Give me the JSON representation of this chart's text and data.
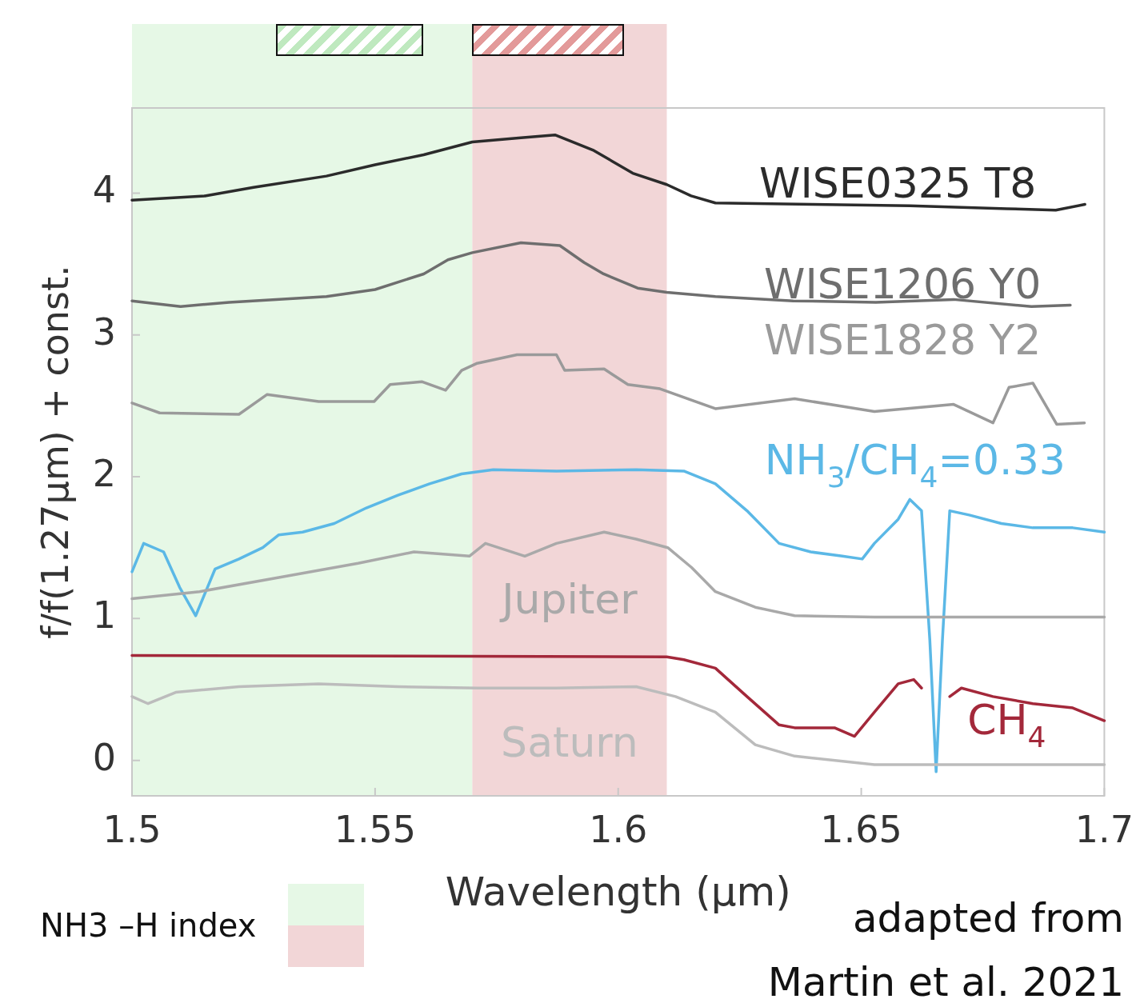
{
  "chart_data": {
    "type": "line",
    "xlabel": "Wavelength (μm)",
    "ylabel": "f/f(1.27μm) + const.",
    "marker": "none",
    "grid": false,
    "xlim": [
      1.5,
      1.7
    ],
    "ylim": [
      -0.25,
      4.6
    ],
    "xticks": [
      1.5,
      1.55,
      1.6,
      1.65,
      1.7
    ],
    "yticks": [
      0,
      1,
      2,
      3,
      4
    ],
    "bands": [
      {
        "axis": "x",
        "from": 1.5,
        "to": 1.57,
        "color": "#e6f8e6"
      },
      {
        "axis": "x",
        "from": 1.57,
        "to": 1.61,
        "color": "#f2d6d7"
      }
    ],
    "annotations": [
      "NH3 –H index",
      "adapted from\nMartin et al. 2021"
    ],
    "series": [
      {
        "name": "WISE0325 T8",
        "color": "#2b2b2b",
        "x": [
          1.5,
          1.515,
          1.525,
          1.54,
          1.55,
          1.56,
          1.57,
          1.58,
          1.587,
          1.595,
          1.603,
          1.61,
          1.615,
          1.62,
          1.64,
          1.66,
          1.68,
          1.69,
          1.696
        ],
        "values": [
          3.95,
          3.98,
          4.04,
          4.12,
          4.2,
          4.27,
          4.36,
          4.39,
          4.41,
          4.3,
          4.14,
          4.06,
          3.98,
          3.93,
          3.92,
          3.91,
          3.89,
          3.88,
          3.92
        ]
      },
      {
        "name": "WISE1206 Y0",
        "color": "#6e6e6e",
        "x": [
          1.5,
          1.51,
          1.52,
          1.54,
          1.55,
          1.56,
          1.565,
          1.57,
          1.58,
          1.588,
          1.593,
          1.597,
          1.604,
          1.61,
          1.62,
          1.636,
          1.653,
          1.669,
          1.685,
          1.693
        ],
        "values": [
          3.24,
          3.2,
          3.23,
          3.27,
          3.32,
          3.43,
          3.53,
          3.58,
          3.65,
          3.63,
          3.51,
          3.43,
          3.33,
          3.3,
          3.27,
          3.24,
          3.23,
          3.25,
          3.2,
          3.21
        ]
      },
      {
        "name": "WISE1828 Y2",
        "color": "#9a9a9a",
        "x": [
          1.5,
          1.5057,
          1.522,
          1.5278,
          1.5384,
          1.5498,
          1.5531,
          1.5596,
          1.5645,
          1.5678,
          1.571,
          1.5792,
          1.5873,
          1.589,
          1.5971,
          1.602,
          1.6086,
          1.62,
          1.6363,
          1.6527,
          1.669,
          1.6771,
          1.6804,
          1.6853,
          1.6902,
          1.6959
        ],
        "values": [
          2.52,
          2.45,
          2.44,
          2.58,
          2.53,
          2.53,
          2.65,
          2.67,
          2.61,
          2.75,
          2.8,
          2.86,
          2.86,
          2.75,
          2.76,
          2.65,
          2.62,
          2.48,
          2.55,
          2.46,
          2.51,
          2.38,
          2.63,
          2.66,
          2.37,
          2.38
        ]
      },
      {
        "name": "NH$_{3}$/CH$_{4}$=0.33",
        "color": "#5bb8e6",
        "x": [
          1.5,
          1.5024,
          1.5065,
          1.5098,
          1.5131,
          1.5171,
          1.522,
          1.5269,
          1.5302,
          1.5351,
          1.5416,
          1.5482,
          1.5547,
          1.5612,
          1.5678,
          1.5743,
          1.5873,
          1.6037,
          1.6135,
          1.62,
          1.6265,
          1.6331,
          1.6396,
          1.6461,
          1.6502,
          1.6527,
          1.6576,
          1.66,
          1.6624,
          1.6641,
          1.6654,
          1.6667,
          1.6682,
          1.6722,
          1.6788,
          1.6853,
          1.6935,
          1.7
        ],
        "values": [
          1.33,
          1.53,
          1.47,
          1.22,
          1.02,
          1.35,
          1.42,
          1.5,
          1.59,
          1.61,
          1.67,
          1.78,
          1.87,
          1.95,
          2.02,
          2.05,
          2.04,
          2.05,
          2.04,
          1.95,
          1.76,
          1.53,
          1.47,
          1.44,
          1.42,
          1.53,
          1.7,
          1.84,
          1.76,
          0.85,
          -0.08,
          0.85,
          1.76,
          1.73,
          1.67,
          1.64,
          1.64,
          1.61
        ]
      },
      {
        "name": "Jupiter",
        "color": "#a9a9a9",
        "x": [
          1.5,
          1.5139,
          1.5302,
          1.5465,
          1.558,
          1.5694,
          1.5727,
          1.5808,
          1.5873,
          1.5971,
          1.6037,
          1.6102,
          1.6151,
          1.62,
          1.6282,
          1.6363,
          1.6527,
          1.7
        ],
        "values": [
          1.14,
          1.19,
          1.29,
          1.39,
          1.47,
          1.44,
          1.53,
          1.44,
          1.53,
          1.61,
          1.56,
          1.5,
          1.36,
          1.19,
          1.08,
          1.02,
          1.01,
          1.01
        ]
      },
      {
        "name": "CH$_{4}$",
        "color": "#a3283a",
        "x": [
          1.5,
          1.61,
          1.6135,
          1.62,
          1.6265,
          1.6331,
          1.6363,
          1.6445,
          1.6486,
          1.6527,
          1.6576,
          1.6608,
          1.6624,
          1.6633,
          1.6665,
          1.6682,
          1.6706,
          1.6771,
          1.6853,
          1.6935,
          1.7
        ],
        "values": [
          0.74,
          0.73,
          0.71,
          0.65,
          0.45,
          0.25,
          0.23,
          0.23,
          0.17,
          0.34,
          0.54,
          0.57,
          0.51,
          null,
          null,
          0.45,
          0.51,
          0.45,
          0.4,
          0.37,
          0.28
        ]
      },
      {
        "name": "Saturn",
        "color": "#bcbcbc",
        "x": [
          1.5,
          1.5033,
          1.509,
          1.522,
          1.5384,
          1.5547,
          1.571,
          1.5873,
          1.6037,
          1.6118,
          1.62,
          1.6282,
          1.6363,
          1.6527,
          1.669,
          1.7
        ],
        "values": [
          0.45,
          0.4,
          0.48,
          0.52,
          0.54,
          0.52,
          0.51,
          0.51,
          0.52,
          0.45,
          0.34,
          0.11,
          0.03,
          -0.03,
          -0.03,
          -0.03
        ]
      }
    ]
  }
}
